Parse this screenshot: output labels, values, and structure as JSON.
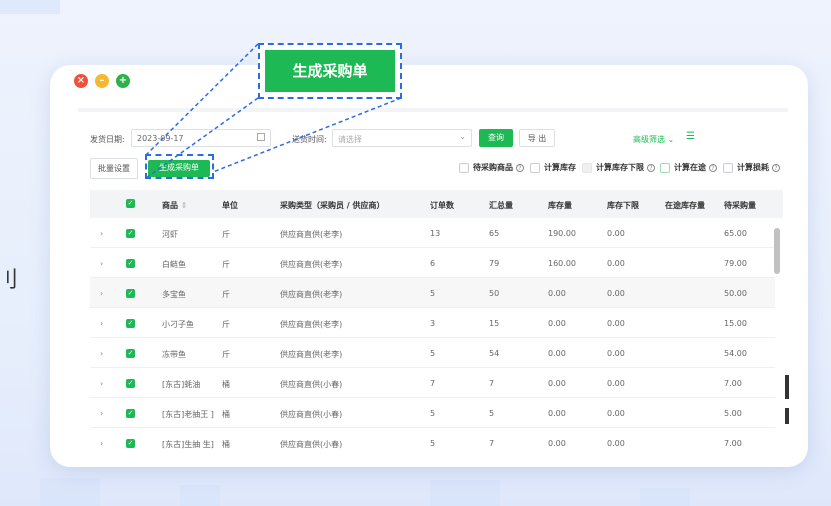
{
  "window": {
    "controls": [
      "close",
      "minimize",
      "maximize"
    ]
  },
  "edge_text": "刂",
  "filters": {
    "ship_date_label": "发货日期:",
    "ship_date_value": "2023-09-17",
    "delivery_time_label": "送货时间:",
    "delivery_time_placeholder": "请选择",
    "query": "查询",
    "export": "导 出",
    "advanced": "高级筛选"
  },
  "actions": {
    "batch": "批量设置",
    "generate": "生成采购单"
  },
  "callout": {
    "label": "生成采购单"
  },
  "options": [
    {
      "label": "待采购商品",
      "help": true
    },
    {
      "label": "计算库存",
      "help": false
    },
    {
      "label": "计算库存下限",
      "help": true
    },
    {
      "label": "计算在途",
      "help": true
    },
    {
      "label": "计算损耗",
      "help": true
    }
  ],
  "table": {
    "headers": [
      "商品",
      "单位",
      "采购类型（采购员 / 供应商）",
      "订单数",
      "汇总量",
      "库存量",
      "库存下限",
      "在途库存量",
      "待采购量"
    ],
    "rows": [
      [
        "河虾",
        "斤",
        "供应商直供(老李)",
        "13",
        "65",
        "190.00",
        "0.00",
        "",
        "65.00"
      ],
      [
        "白鲢鱼",
        "斤",
        "供应商直供(老李)",
        "6",
        "79",
        "160.00",
        "0.00",
        "",
        "79.00"
      ],
      [
        "多宝鱼",
        "斤",
        "供应商直供(老李)",
        "5",
        "50",
        "0.00",
        "0.00",
        "",
        "50.00"
      ],
      [
        "小刁子鱼",
        "斤",
        "供应商直供(老李)",
        "3",
        "15",
        "0.00",
        "0.00",
        "",
        "15.00"
      ],
      [
        "冻带鱼",
        "斤",
        "供应商直供(老李)",
        "5",
        "54",
        "0.00",
        "0.00",
        "",
        "54.00"
      ],
      [
        "[东古]蚝油",
        "桶",
        "供应商直供(小春)",
        "7",
        "7",
        "0.00",
        "0.00",
        "",
        "7.00"
      ],
      [
        "[东古]老抽王 ]",
        "桶",
        "供应商直供(小春)",
        "5",
        "5",
        "0.00",
        "0.00",
        "",
        "5.00"
      ],
      [
        "[东古]生抽 生]",
        "桶",
        "供应商直供(小春)",
        "5",
        "7",
        "0.00",
        "0.00",
        "",
        "7.00"
      ]
    ]
  },
  "colors": {
    "accent": "#1db954",
    "highlight": "#2d6be4"
  }
}
